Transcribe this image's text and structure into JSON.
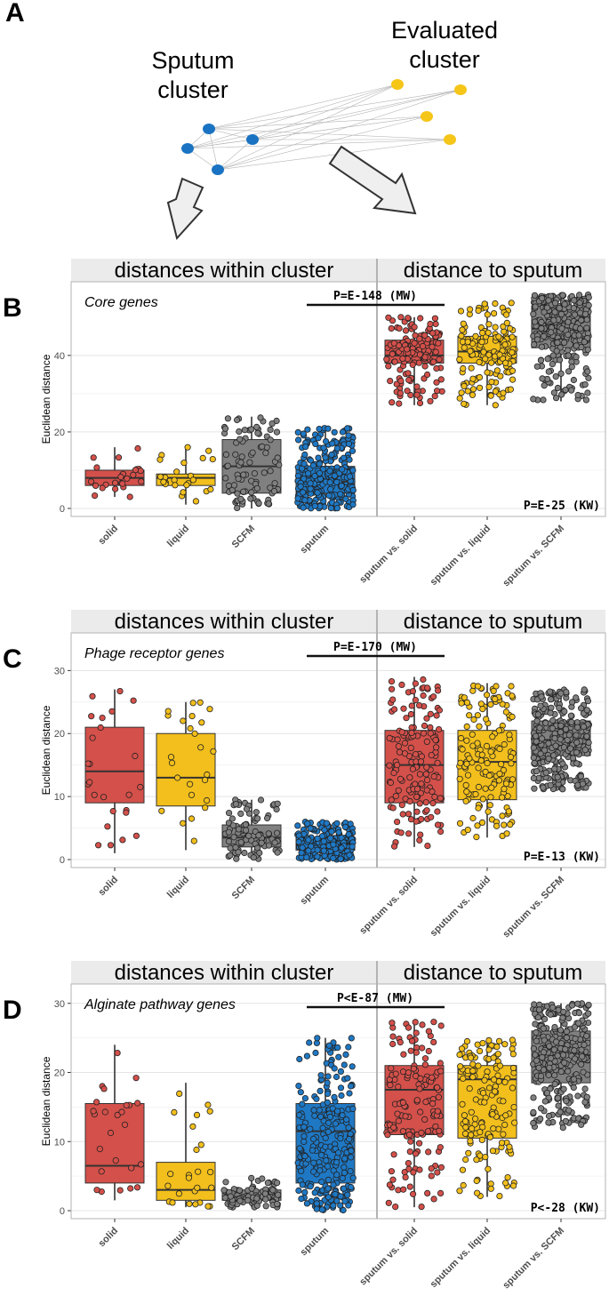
{
  "panel_a": {
    "letter": "A",
    "sputum_label_line1": "Sputum",
    "sputum_label_line2": "cluster",
    "evaluated_label_line1": "Evaluated",
    "evaluated_label_line2": "cluster"
  },
  "strip": {
    "within": "distances within cluster",
    "to_sputum": "distance to sputum"
  },
  "colors": {
    "solid": "#d4504a",
    "liquid": "#f2bf1c",
    "scfm": "#808080",
    "sputum": "#1f78c4",
    "node_blue": "#1a73c2",
    "node_yellow": "#f5c518"
  },
  "chart_data": [
    {
      "type": "box",
      "panel_letter": "B",
      "subtitle": "Core genes",
      "ylabel": "Euclidean distance",
      "ylim": [
        0,
        56
      ],
      "yticks": [
        0,
        20,
        40
      ],
      "categories": [
        "solid",
        "liquid",
        "SCFM",
        "sputum",
        "sputum vs. solid",
        "sputum vs. liquid",
        "sputum vs. SCFM"
      ],
      "boxes": [
        {
          "q1": 6,
          "median": 8,
          "q3": 10,
          "lo": 3,
          "hi": 16,
          "n": 25
        },
        {
          "q1": 6,
          "median": 8,
          "q3": 9,
          "lo": 1,
          "hi": 16,
          "n": 25
        },
        {
          "q1": 4,
          "median": 11,
          "q3": 18,
          "lo": 0,
          "hi": 24,
          "n": 90
        },
        {
          "q1": 4,
          "median": 7,
          "q3": 11,
          "lo": 0,
          "hi": 21,
          "n": 250
        },
        {
          "q1": 38,
          "median": 40,
          "q3": 44,
          "lo": 27,
          "hi": 50,
          "n": 150
        },
        {
          "q1": 38,
          "median": 41,
          "q3": 45,
          "lo": 27,
          "hi": 54,
          "n": 150
        },
        {
          "q1": 42,
          "median": 47,
          "q3": 53,
          "lo": 28,
          "hi": 56,
          "n": 300
        }
      ],
      "annotation_mw": "P=E-148 (MW)",
      "annotation_kw": "P=E-25 (KW)"
    },
    {
      "type": "box",
      "panel_letter": "C",
      "subtitle": "Phage receptor genes",
      "ylabel": "Euclidean distance",
      "ylim": [
        0,
        34
      ],
      "yticks": [
        0,
        10,
        20,
        30
      ],
      "categories": [
        "solid",
        "liquid",
        "SCFM",
        "sputum",
        "sputum vs. solid",
        "sputum vs. liquid",
        "sputum vs. SCFM"
      ],
      "boxes": [
        {
          "q1": 9,
          "median": 14,
          "q3": 21,
          "lo": 1,
          "hi": 27,
          "n": 25
        },
        {
          "q1": 8.5,
          "median": 13,
          "q3": 20,
          "lo": 1.5,
          "hi": 25,
          "n": 25
        },
        {
          "q1": 2,
          "median": 3.5,
          "q3": 5.5,
          "lo": 0,
          "hi": 9.5,
          "n": 90
        },
        {
          "q1": 1.5,
          "median": 2.5,
          "q3": 3.5,
          "lo": 0,
          "hi": 6,
          "n": 250
        },
        {
          "q1": 9,
          "median": 15,
          "q3": 20.5,
          "lo": 2,
          "hi": 29,
          "n": 150
        },
        {
          "q1": 9.5,
          "median": 15.5,
          "q3": 20.5,
          "lo": 3.5,
          "hi": 28,
          "n": 150
        },
        {
          "q1": 16.5,
          "median": 19,
          "q3": 22,
          "lo": 11,
          "hi": 27,
          "n": 300
        }
      ],
      "annotation_mw": "P=E-170 (MW)",
      "annotation_kw": "P=E-13 (KW)"
    },
    {
      "type": "box",
      "panel_letter": "D",
      "subtitle": "Alginate pathway genes",
      "ylabel": "Euclidean distance",
      "ylim": [
        0,
        31
      ],
      "yticks": [
        0,
        10,
        20,
        30
      ],
      "categories": [
        "solid",
        "liquid",
        "SCFM",
        "sputum",
        "sputum vs. solid",
        "sputum vs. liquid",
        "sputum vs. SCFM"
      ],
      "boxes": [
        {
          "q1": 4,
          "median": 6.5,
          "q3": 15.5,
          "lo": 1.5,
          "hi": 24,
          "n": 25
        },
        {
          "q1": 1.5,
          "median": 3,
          "q3": 7,
          "lo": 0.5,
          "hi": 18.5,
          "n": 25
        },
        {
          "q1": 1.5,
          "median": 2,
          "q3": 3,
          "lo": 0.5,
          "hi": 5,
          "n": 90
        },
        {
          "q1": 4,
          "median": 11.5,
          "q3": 15.5,
          "lo": 0,
          "hi": 25,
          "n": 250
        },
        {
          "q1": 11,
          "median": 17.5,
          "q3": 21,
          "lo": 0.5,
          "hi": 27.5,
          "n": 150
        },
        {
          "q1": 10.5,
          "median": 19,
          "q3": 21,
          "lo": 2,
          "hi": 25,
          "n": 150
        },
        {
          "q1": 18.5,
          "median": 22.5,
          "q3": 26,
          "lo": 12,
          "hi": 30,
          "n": 300
        }
      ],
      "annotation_mw": "P<E-87 (MW)",
      "annotation_kw": "P<-28 (KW)"
    }
  ]
}
